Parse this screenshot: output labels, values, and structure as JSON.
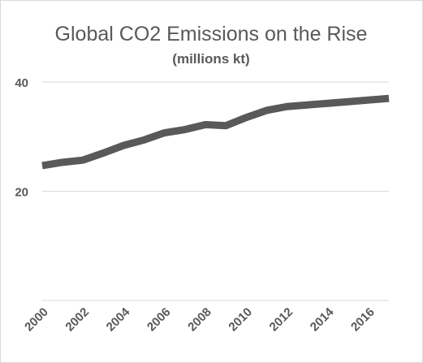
{
  "chart_data": {
    "type": "line",
    "title": "Global CO2 Emissions on the Rise",
    "subtitle": "(millions kt)",
    "x": [
      2000,
      2001,
      2002,
      2003,
      2004,
      2005,
      2006,
      2007,
      2008,
      2009,
      2010,
      2011,
      2012,
      2013,
      2014,
      2015,
      2016,
      2017
    ],
    "series": [
      {
        "values": [
          24.7,
          25.3,
          25.7,
          27.0,
          28.4,
          29.4,
          30.7,
          31.3,
          32.2,
          32.0,
          33.5,
          34.8,
          35.5,
          35.8,
          36.1,
          36.4,
          36.7,
          37.0
        ],
        "color": "#595959"
      }
    ],
    "yticks": [
      20,
      40
    ],
    "xticks": [
      "2000",
      "2002",
      "2004",
      "2006",
      "2008",
      "2010",
      "2012",
      "2014",
      "2016"
    ],
    "ylim": [
      0,
      40
    ],
    "xlim": [
      2000,
      2017
    ],
    "grid": true,
    "legend": "none",
    "xlabel": "",
    "ylabel": ""
  }
}
